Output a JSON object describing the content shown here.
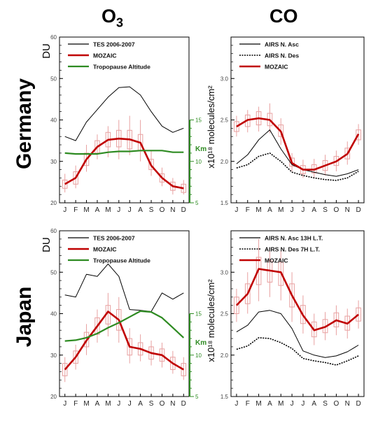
{
  "column_titles": {
    "o3": "O3",
    "o3_base": "O",
    "o3_sub": "3",
    "co": "CO"
  },
  "row_titles": [
    "Germany",
    "Japan"
  ],
  "colors": {
    "tes": "#000000",
    "mozaic": "#c00000",
    "tropopause": "#2e8b22",
    "box": "#e8a0a0",
    "km_axis": "#2e8b22"
  },
  "chart_data": [
    {
      "id": "germany-o3",
      "type": "line",
      "row": "Germany",
      "ylabel": "DU",
      "ylim": [
        20,
        60
      ],
      "yticks": [
        20,
        30,
        40,
        50,
        60
      ],
      "categories": [
        "J",
        "F",
        "M",
        "A",
        "M",
        "J",
        "J",
        "A",
        "S",
        "O",
        "N",
        "D"
      ],
      "secondary_axis": {
        "label": "Km",
        "ylim": [
          5,
          15
        ],
        "ticks": [
          5,
          10,
          15
        ],
        "lim_du": [
          20,
          40
        ]
      },
      "legend": [
        "TES 2006-2007",
        "MOZAIC",
        "Tropopause Altitude"
      ],
      "series": [
        {
          "name": "TES 2006-2007",
          "style": "tes",
          "values": [
            36,
            35,
            39.5,
            42.5,
            45.5,
            47.8,
            48,
            46,
            42,
            38.5,
            37,
            38
          ]
        },
        {
          "name": "MOZAIC",
          "style": "mozaic",
          "values": [
            24.5,
            26,
            30.5,
            33.5,
            35.2,
            35.5,
            35.3,
            34.5,
            29,
            26,
            24,
            23.5
          ]
        },
        {
          "name": "Tropopause Altitude",
          "style": "tropopause",
          "axis": "km",
          "values": [
            11,
            10.9,
            10.9,
            10.9,
            11.1,
            11.2,
            11.2,
            11.3,
            11.3,
            11.3,
            11.1,
            11.1
          ]
        }
      ],
      "boxes": [
        {
          "q1": 23.5,
          "q3": 25.5,
          "lo": 22.5,
          "hi": 27
        },
        {
          "q1": 24.5,
          "q3": 27.5,
          "lo": 23.5,
          "hi": 29
        },
        {
          "q1": 29,
          "q3": 32,
          "lo": 27.5,
          "hi": 34
        },
        {
          "q1": 32,
          "q3": 35,
          "lo": 30.5,
          "hi": 36.5
        },
        {
          "q1": 33.5,
          "q3": 37,
          "lo": 31,
          "hi": 38.5
        },
        {
          "q1": 33.5,
          "q3": 37.5,
          "lo": 30.5,
          "hi": 40
        },
        {
          "q1": 33,
          "q3": 37.5,
          "lo": 31.5,
          "hi": 41
        },
        {
          "q1": 32.5,
          "q3": 36.5,
          "lo": 30,
          "hi": 40
        },
        {
          "q1": 28,
          "q3": 30.5,
          "lo": 26.5,
          "hi": 32.5
        },
        {
          "q1": 25,
          "q3": 27,
          "lo": 24,
          "hi": 28.5
        },
        {
          "q1": 23,
          "q3": 25,
          "lo": 22,
          "hi": 26
        },
        {
          "q1": 22.5,
          "q3": 24.5,
          "lo": 22,
          "hi": 25.5
        }
      ]
    },
    {
      "id": "germany-co",
      "type": "line",
      "row": "Germany",
      "ylabel": "x10¹⁸ molecules/cm²",
      "ylim": [
        1.5,
        3.5
      ],
      "yticks": [
        1.5,
        2.0,
        2.5,
        3.0
      ],
      "categories": [
        "J",
        "F",
        "M",
        "A",
        "M",
        "J",
        "J",
        "A",
        "S",
        "O",
        "N",
        "D"
      ],
      "legend": [
        "AIRS N. Asc",
        "AIRS N. Des",
        "MOZAIC"
      ],
      "series": [
        {
          "name": "AIRS N. Asc",
          "style": "solid",
          "values": [
            1.97,
            2.08,
            2.26,
            2.38,
            2.15,
            1.96,
            1.9,
            1.87,
            1.84,
            1.82,
            1.85,
            1.9
          ]
        },
        {
          "name": "AIRS N. Des",
          "style": "dotted",
          "values": [
            1.92,
            1.96,
            2.06,
            2.1,
            2.0,
            1.87,
            1.83,
            1.8,
            1.78,
            1.77,
            1.8,
            1.88
          ]
        },
        {
          "name": "MOZAIC",
          "style": "mozaic",
          "values": [
            2.42,
            2.5,
            2.52,
            2.5,
            2.36,
            1.98,
            1.9,
            1.9,
            1.95,
            2.0,
            2.09,
            2.33
          ]
        }
      ],
      "boxes": [
        {
          "q1": 2.36,
          "q3": 2.48,
          "lo": 2.3,
          "hi": 2.55
        },
        {
          "q1": 2.42,
          "q3": 2.56,
          "lo": 2.35,
          "hi": 2.62
        },
        {
          "q1": 2.44,
          "q3": 2.6,
          "lo": 2.36,
          "hi": 2.66
        },
        {
          "q1": 2.43,
          "q3": 2.58,
          "lo": 2.34,
          "hi": 2.7
        },
        {
          "q1": 2.3,
          "q3": 2.44,
          "lo": 2.2,
          "hi": 2.52
        },
        {
          "q1": 1.94,
          "q3": 2.04,
          "lo": 1.88,
          "hi": 2.1
        },
        {
          "q1": 1.85,
          "q3": 1.95,
          "lo": 1.8,
          "hi": 2.02
        },
        {
          "q1": 1.86,
          "q3": 1.96,
          "lo": 1.8,
          "hi": 2.03
        },
        {
          "q1": 1.89,
          "q3": 2.01,
          "lo": 1.83,
          "hi": 2.08
        },
        {
          "q1": 1.95,
          "q3": 2.06,
          "lo": 1.88,
          "hi": 2.13
        },
        {
          "q1": 2.03,
          "q3": 2.16,
          "lo": 1.96,
          "hi": 2.24
        },
        {
          "q1": 2.26,
          "q3": 2.38,
          "lo": 2.2,
          "hi": 2.45
        }
      ]
    },
    {
      "id": "japan-o3",
      "type": "line",
      "row": "Japan",
      "ylabel": "DU",
      "ylim": [
        20,
        60
      ],
      "yticks": [
        20,
        30,
        40,
        50,
        60
      ],
      "categories": [
        "J",
        "F",
        "M",
        "A",
        "M",
        "J",
        "J",
        "A",
        "S",
        "O",
        "N",
        "D"
      ],
      "secondary_axis": {
        "label": "Km",
        "ylim": [
          5,
          15
        ],
        "ticks": [
          5,
          10,
          15
        ],
        "lim_du": [
          20,
          40
        ]
      },
      "legend": [
        "TES 2006-2007",
        "MOZAIC",
        "Tropopause Altitude"
      ],
      "series": [
        {
          "name": "TES 2006-2007",
          "style": "tes",
          "values": [
            44.5,
            44,
            49.5,
            49,
            52,
            49,
            41,
            40.8,
            40.5,
            45,
            43.5,
            45
          ]
        },
        {
          "name": "MOZAIC",
          "style": "mozaic",
          "values": [
            26.5,
            29.5,
            33.5,
            37,
            40.5,
            38.5,
            32,
            31.5,
            30.5,
            30,
            28,
            26.5
          ]
        },
        {
          "name": "Tropopause Altitude",
          "style": "tropopause",
          "axis": "km",
          "values": [
            11.7,
            11.8,
            12.1,
            12.6,
            13.3,
            13.9,
            14.6,
            15.3,
            15.2,
            14.5,
            13.3,
            12.1
          ]
        }
      ],
      "boxes": [
        {
          "q1": 25,
          "q3": 28,
          "lo": 23.5,
          "hi": 29.5
        },
        {
          "q1": 28,
          "q3": 31,
          "lo": 26.5,
          "hi": 32.5
        },
        {
          "q1": 32,
          "q3": 35.5,
          "lo": 30,
          "hi": 37.5
        },
        {
          "q1": 35,
          "q3": 39,
          "lo": 33,
          "hi": 41
        },
        {
          "q1": 37.5,
          "q3": 42,
          "lo": 34.5,
          "hi": 45
        },
        {
          "q1": 36,
          "q3": 41,
          "lo": 33,
          "hi": 44
        },
        {
          "q1": 30,
          "q3": 34,
          "lo": 28,
          "hi": 36.5
        },
        {
          "q1": 30,
          "q3": 33,
          "lo": 28.5,
          "hi": 35
        },
        {
          "q1": 29,
          "q3": 32,
          "lo": 27.5,
          "hi": 33.5
        },
        {
          "q1": 28.5,
          "q3": 31.5,
          "lo": 27,
          "hi": 33
        },
        {
          "q1": 26.5,
          "q3": 29.5,
          "lo": 25.5,
          "hi": 31
        },
        {
          "q1": 25,
          "q3": 28,
          "lo": 24,
          "hi": 29.5
        }
      ]
    },
    {
      "id": "japan-co",
      "type": "line",
      "row": "Japan",
      "ylabel": "x10¹⁸ molecules/cm²",
      "ylim": [
        1.5,
        3.5
      ],
      "yticks": [
        1.5,
        2.0,
        2.5,
        3.0
      ],
      "categories": [
        "J",
        "F",
        "M",
        "A",
        "M",
        "J",
        "J",
        "A",
        "S",
        "O",
        "N",
        "D"
      ],
      "legend": [
        "AIRS N. Asc 13H L.T.",
        "AIRS N. Des   7H L.T.",
        "MOZAIC"
      ],
      "series": [
        {
          "name": "AIRS N. Asc 13H L.T.",
          "style": "solid",
          "values": [
            2.28,
            2.36,
            2.52,
            2.54,
            2.5,
            2.32,
            2.05,
            2.0,
            1.97,
            1.99,
            2.04,
            2.12
          ]
        },
        {
          "name": "AIRS N. Des 7H L.T.",
          "style": "dotted",
          "values": [
            2.07,
            2.11,
            2.21,
            2.2,
            2.15,
            2.08,
            1.96,
            1.93,
            1.91,
            1.88,
            1.93,
            1.99
          ]
        },
        {
          "name": "MOZAIC",
          "style": "mozaic",
          "values": [
            2.6,
            2.74,
            3.04,
            3.02,
            3.0,
            2.72,
            2.48,
            2.3,
            2.34,
            2.42,
            2.38,
            2.49
          ]
        }
      ],
      "boxes": [
        {
          "q1": 2.5,
          "q3": 2.7,
          "lo": 2.4,
          "hi": 2.8
        },
        {
          "q1": 2.62,
          "q3": 2.86,
          "lo": 2.5,
          "hi": 3.0
        },
        {
          "q1": 2.85,
          "q3": 3.18,
          "lo": 2.65,
          "hi": 3.4
        },
        {
          "q1": 2.88,
          "q3": 3.14,
          "lo": 2.7,
          "hi": 3.3
        },
        {
          "q1": 2.84,
          "q3": 3.12,
          "lo": 2.66,
          "hi": 3.26
        },
        {
          "q1": 2.58,
          "q3": 2.86,
          "lo": 2.4,
          "hi": 3.0
        },
        {
          "q1": 2.38,
          "q3": 2.6,
          "lo": 2.26,
          "hi": 2.72
        },
        {
          "q1": 2.22,
          "q3": 2.4,
          "lo": 2.12,
          "hi": 2.5
        },
        {
          "q1": 2.27,
          "q3": 2.43,
          "lo": 2.18,
          "hi": 2.52
        },
        {
          "q1": 2.34,
          "q3": 2.51,
          "lo": 2.24,
          "hi": 2.6
        },
        {
          "q1": 2.3,
          "q3": 2.47,
          "lo": 2.2,
          "hi": 2.56
        },
        {
          "q1": 2.41,
          "q3": 2.57,
          "lo": 2.32,
          "hi": 2.66
        }
      ]
    }
  ]
}
